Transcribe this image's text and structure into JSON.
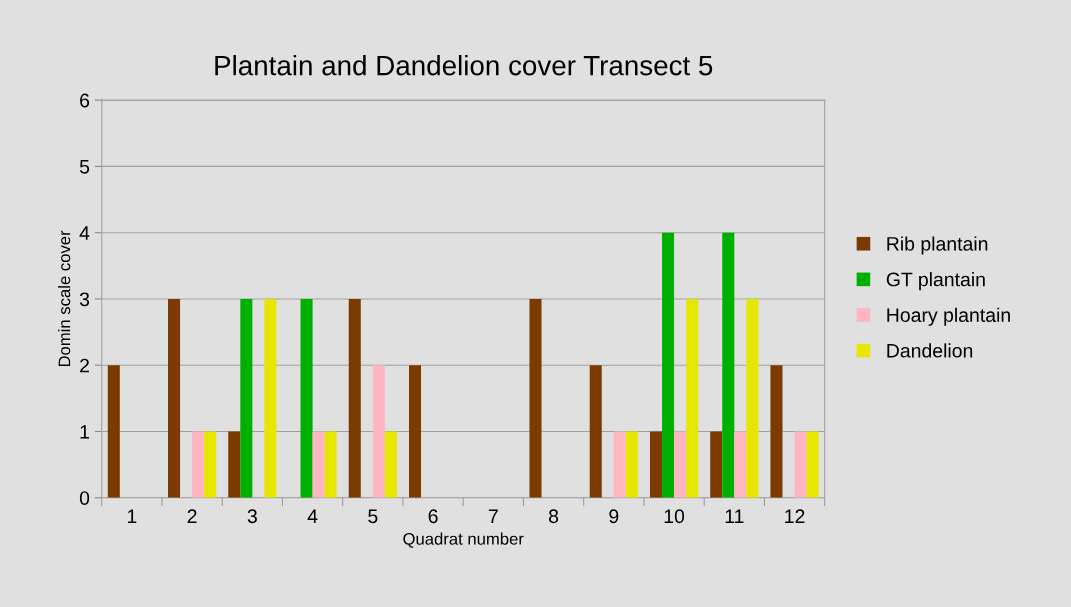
{
  "chart_data": {
    "type": "bar",
    "title": "Plantain and Dandelion cover Transect 5",
    "xlabel": "Quadrat number",
    "ylabel": "Domin scale cover",
    "categories": [
      "1",
      "2",
      "3",
      "4",
      "5",
      "6",
      "7",
      "8",
      "9",
      "10",
      "11",
      "12"
    ],
    "series": [
      {
        "name": "Rib plantain",
        "color": "#7b3b00",
        "values": [
          2,
          3,
          1,
          0,
          3,
          2,
          0,
          3,
          2,
          1,
          1,
          2
        ]
      },
      {
        "name": "GT plantain",
        "color": "#00b000",
        "values": [
          0,
          0,
          3,
          3,
          0,
          0,
          0,
          0,
          0,
          4,
          4,
          0
        ]
      },
      {
        "name": "Hoary plantain",
        "color": "#ffb6c1",
        "values": [
          0,
          1,
          0,
          1,
          2,
          0,
          0,
          0,
          1,
          1,
          1,
          1
        ]
      },
      {
        "name": "Dandelion",
        "color": "#e6e600",
        "values": [
          0,
          1,
          3,
          1,
          1,
          0,
          0,
          0,
          1,
          3,
          3,
          1
        ]
      }
    ],
    "ylim": [
      0,
      6
    ],
    "yticks": [
      0,
      1,
      2,
      3,
      4,
      5,
      6
    ],
    "grid": "y",
    "legend": "right"
  }
}
